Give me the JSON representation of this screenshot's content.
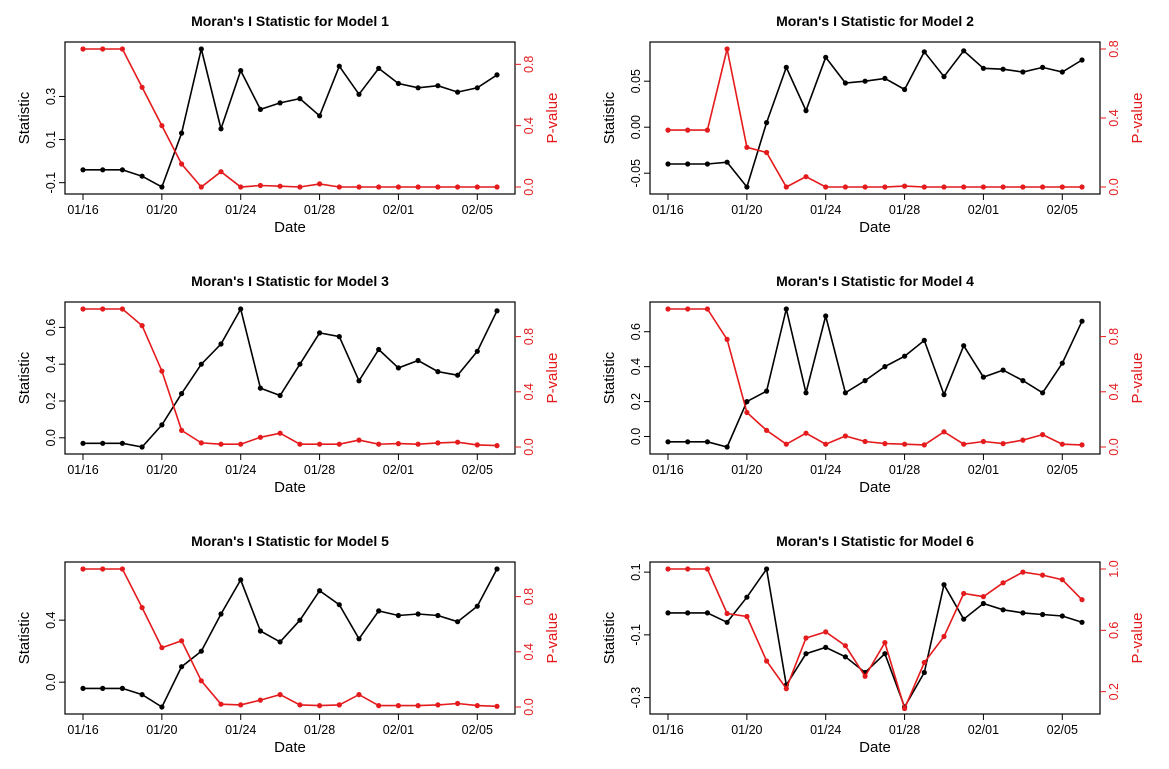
{
  "figure": {
    "colors": {
      "statistic": "#000000",
      "pvalue": "#e41a1c",
      "axis": "#000000"
    }
  },
  "chart_data": [
    {
      "type": "line",
      "title": "Moran's I Statistic for Model 1",
      "xlabel": "Date",
      "ylabel": "Statistic",
      "y2label": "P-value",
      "x": [
        "01/16",
        "01/17",
        "01/18",
        "01/19",
        "01/20",
        "01/21",
        "01/22",
        "01/23",
        "01/24",
        "01/25",
        "01/26",
        "01/27",
        "01/28",
        "01/29",
        "01/30",
        "01/31",
        "02/01",
        "02/02",
        "02/03",
        "02/04",
        "02/05",
        "02/06"
      ],
      "xticks": [
        "01/16",
        "01/20",
        "01/24",
        "01/28",
        "02/01",
        "02/05"
      ],
      "ylim": [
        -0.12,
        0.52
      ],
      "yticks": [
        "-0.1",
        "0.1",
        "0.3"
      ],
      "y2lim": [
        0,
        0.9
      ],
      "y2ticks": [
        "0.0",
        "0.4",
        "0.8"
      ],
      "series": [
        {
          "axis": "left",
          "color": "#000000",
          "values": [
            -0.04,
            -0.04,
            -0.04,
            -0.07,
            -0.12,
            0.13,
            0.52,
            0.15,
            0.42,
            0.24,
            0.27,
            0.29,
            0.21,
            0.44,
            0.31,
            0.43,
            0.36,
            0.34,
            0.35,
            0.32,
            0.34,
            0.4
          ]
        },
        {
          "axis": "right",
          "color": "#e41a1c",
          "values": [
            0.9,
            0.9,
            0.9,
            0.65,
            0.4,
            0.15,
            0.0,
            0.1,
            0.0,
            0.01,
            0.005,
            0.0,
            0.02,
            0.0,
            0.0,
            0.0,
            0.0,
            0.0,
            0.0,
            0.0,
            0.0,
            0.0
          ]
        }
      ]
    },
    {
      "type": "line",
      "title": "Moran's I Statistic for Model 2",
      "xlabel": "Date",
      "ylabel": "Statistic",
      "y2label": "P-value",
      "x": [
        "01/16",
        "01/17",
        "01/18",
        "01/19",
        "01/20",
        "01/21",
        "01/22",
        "01/23",
        "01/24",
        "01/25",
        "01/26",
        "01/27",
        "01/28",
        "01/29",
        "01/30",
        "01/31",
        "02/01",
        "02/02",
        "02/03",
        "02/04",
        "02/05",
        "02/06"
      ],
      "xticks": [
        "01/16",
        "01/20",
        "01/24",
        "01/28",
        "02/01",
        "02/05"
      ],
      "ylim": [
        -0.065,
        0.085
      ],
      "yticks": [
        "-0.05",
        "0.00",
        "0.05"
      ],
      "y2lim": [
        0,
        0.8
      ],
      "y2ticks": [
        "0.0",
        "0.4",
        "0.8"
      ],
      "series": [
        {
          "axis": "left",
          "color": "#000000",
          "values": [
            -0.04,
            -0.04,
            -0.04,
            -0.038,
            -0.065,
            0.005,
            0.065,
            0.018,
            0.076,
            0.048,
            0.05,
            0.053,
            0.041,
            0.082,
            0.055,
            0.083,
            0.064,
            0.063,
            0.06,
            0.065,
            0.06,
            0.073
          ]
        },
        {
          "axis": "right",
          "color": "#e41a1c",
          "values": [
            0.33,
            0.33,
            0.33,
            0.8,
            0.23,
            0.2,
            0.0,
            0.06,
            0.0,
            0.0,
            0.0,
            0.0,
            0.005,
            0.0,
            0.0,
            0.0,
            0.0,
            0.0,
            0.0,
            0.0,
            0.0,
            0.0
          ]
        }
      ]
    },
    {
      "type": "line",
      "title": "Moran's I Statistic for Model 3",
      "xlabel": "Date",
      "ylabel": "Statistic",
      "y2label": "P-value",
      "x": [
        "01/16",
        "01/17",
        "01/18",
        "01/19",
        "01/20",
        "01/21",
        "01/22",
        "01/23",
        "01/24",
        "01/25",
        "01/26",
        "01/27",
        "01/28",
        "01/29",
        "01/30",
        "01/31",
        "02/01",
        "02/02",
        "02/03",
        "02/04",
        "02/05",
        "02/06"
      ],
      "xticks": [
        "01/16",
        "01/20",
        "01/24",
        "01/28",
        "02/01",
        "02/05"
      ],
      "ylim": [
        -0.05,
        0.7
      ],
      "yticks": [
        "0.0",
        "0.2",
        "0.4",
        "0.6"
      ],
      "y2lim": [
        0,
        1
      ],
      "y2ticks": [
        "0.0",
        "0.4",
        "0.8"
      ],
      "series": [
        {
          "axis": "left",
          "color": "#000000",
          "values": [
            -0.03,
            -0.03,
            -0.03,
            -0.05,
            0.07,
            0.24,
            0.4,
            0.51,
            0.7,
            0.27,
            0.23,
            0.4,
            0.57,
            0.55,
            0.31,
            0.48,
            0.38,
            0.42,
            0.36,
            0.34,
            0.47,
            0.69
          ]
        },
        {
          "axis": "right",
          "color": "#e41a1c",
          "values": [
            1.0,
            1.0,
            1.0,
            0.88,
            0.55,
            0.12,
            0.03,
            0.02,
            0.02,
            0.07,
            0.1,
            0.02,
            0.02,
            0.02,
            0.05,
            0.02,
            0.025,
            0.02,
            0.03,
            0.035,
            0.015,
            0.01
          ]
        }
      ]
    },
    {
      "type": "line",
      "title": "Moran's I Statistic for Model 4",
      "xlabel": "Date",
      "ylabel": "Statistic",
      "y2label": "P-value",
      "x": [
        "01/16",
        "01/17",
        "01/18",
        "01/19",
        "01/20",
        "01/21",
        "01/22",
        "01/23",
        "01/24",
        "01/25",
        "01/26",
        "01/27",
        "01/28",
        "01/29",
        "01/30",
        "01/31",
        "02/01",
        "02/02",
        "02/03",
        "02/04",
        "02/05",
        "02/06"
      ],
      "xticks": [
        "01/16",
        "01/20",
        "01/24",
        "01/28",
        "02/01",
        "02/05"
      ],
      "ylim": [
        -0.06,
        0.73
      ],
      "yticks": [
        "0.0",
        "0.2",
        "0.4",
        "0.6"
      ],
      "y2lim": [
        0,
        1
      ],
      "y2ticks": [
        "0.0",
        "0.4",
        "0.8"
      ],
      "series": [
        {
          "axis": "left",
          "color": "#000000",
          "values": [
            -0.03,
            -0.03,
            -0.03,
            -0.06,
            0.2,
            0.26,
            0.73,
            0.25,
            0.69,
            0.25,
            0.32,
            0.4,
            0.46,
            0.55,
            0.24,
            0.52,
            0.34,
            0.38,
            0.32,
            0.25,
            0.42,
            0.66
          ]
        },
        {
          "axis": "right",
          "color": "#e41a1c",
          "values": [
            1.0,
            1.0,
            1.0,
            0.78,
            0.25,
            0.12,
            0.02,
            0.1,
            0.02,
            0.08,
            0.04,
            0.025,
            0.02,
            0.015,
            0.11,
            0.02,
            0.04,
            0.025,
            0.05,
            0.09,
            0.02,
            0.015
          ]
        }
      ]
    },
    {
      "type": "line",
      "title": "Moran's I Statistic for Model 5",
      "xlabel": "Date",
      "ylabel": "Statistic",
      "y2label": "P-value",
      "x": [
        "01/16",
        "01/17",
        "01/18",
        "01/19",
        "01/20",
        "01/21",
        "01/22",
        "01/23",
        "01/24",
        "01/25",
        "01/26",
        "01/27",
        "01/28",
        "01/29",
        "01/30",
        "01/31",
        "02/01",
        "02/02",
        "02/03",
        "02/04",
        "02/05",
        "02/06"
      ],
      "xticks": [
        "01/16",
        "01/20",
        "01/24",
        "01/28",
        "02/01",
        "02/05"
      ],
      "ylim": [
        -0.16,
        0.73
      ],
      "yticks": [
        "0.0",
        "0.4"
      ],
      "y2lim": [
        0,
        1
      ],
      "y2ticks": [
        "0.0",
        "0.4",
        "0.8"
      ],
      "series": [
        {
          "axis": "left",
          "color": "#000000",
          "values": [
            -0.04,
            -0.04,
            -0.04,
            -0.08,
            -0.16,
            0.1,
            0.2,
            0.44,
            0.66,
            0.33,
            0.26,
            0.4,
            0.59,
            0.5,
            0.28,
            0.46,
            0.43,
            0.44,
            0.43,
            0.39,
            0.49,
            0.73
          ]
        },
        {
          "axis": "right",
          "color": "#e41a1c",
          "values": [
            1.0,
            1.0,
            1.0,
            0.72,
            0.43,
            0.48,
            0.19,
            0.02,
            0.015,
            0.05,
            0.09,
            0.015,
            0.01,
            0.015,
            0.09,
            0.01,
            0.01,
            0.01,
            0.015,
            0.025,
            0.01,
            0.005
          ]
        }
      ]
    },
    {
      "type": "line",
      "title": "Moran's I Statistic for Model 6",
      "xlabel": "Date",
      "ylabel": "Statistic",
      "y2label": "P-value",
      "x": [
        "01/16",
        "01/17",
        "01/18",
        "01/19",
        "01/20",
        "01/21",
        "01/22",
        "01/23",
        "01/24",
        "01/25",
        "01/26",
        "01/27",
        "01/28",
        "01/29",
        "01/30",
        "01/31",
        "02/01",
        "02/02",
        "02/03",
        "02/04",
        "02/05",
        "02/06"
      ],
      "xticks": [
        "01/16",
        "01/20",
        "01/24",
        "01/28",
        "02/01",
        "02/05"
      ],
      "ylim": [
        -0.33,
        0.11
      ],
      "yticks": [
        "-0.3",
        "-0.1",
        "0.1"
      ],
      "y2lim": [
        0.1,
        1.0
      ],
      "y2ticks": [
        "0.2",
        "0.6",
        "1.0"
      ],
      "series": [
        {
          "axis": "left",
          "color": "#000000",
          "values": [
            -0.03,
            -0.03,
            -0.03,
            -0.06,
            0.02,
            0.11,
            -0.26,
            -0.16,
            -0.14,
            -0.17,
            -0.22,
            -0.16,
            -0.33,
            -0.22,
            0.06,
            -0.05,
            0.0,
            -0.02,
            -0.03,
            -0.035,
            -0.04,
            -0.06
          ]
        },
        {
          "axis": "right",
          "color": "#e41a1c",
          "values": [
            1.0,
            1.0,
            1.0,
            0.71,
            0.69,
            0.4,
            0.22,
            0.55,
            0.59,
            0.5,
            0.3,
            0.52,
            0.09,
            0.39,
            0.56,
            0.84,
            0.82,
            0.91,
            0.98,
            0.96,
            0.93,
            0.8
          ]
        }
      ]
    }
  ]
}
